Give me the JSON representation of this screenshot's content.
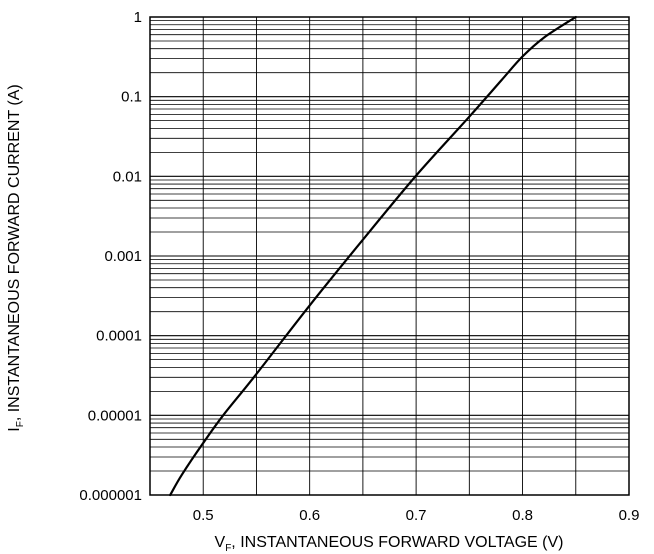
{
  "chart_data": {
    "type": "line",
    "title": "",
    "xlabel": {
      "main": "V",
      "sub": "F",
      "rest": ", INSTANTANEOUS FORWARD VOLTAGE (V)"
    },
    "ylabel": {
      "main": "I",
      "sub": "F",
      "rest": ", INSTANTANEOUS FORWARD CURRENT (A)"
    },
    "xscale": "linear",
    "yscale": "log",
    "xlim": [
      0.45,
      0.9
    ],
    "ylim": [
      1e-06,
      1
    ],
    "x_ticks": [
      0.5,
      0.6,
      0.7,
      0.8,
      0.9
    ],
    "x_tick_labels": [
      "0.5",
      "0.6",
      "0.7",
      "0.8",
      "0.9"
    ],
    "y_ticks": [
      1e-06,
      1e-05,
      0.0001,
      0.001,
      0.01,
      0.1,
      1
    ],
    "y_tick_labels": [
      "0.000001",
      "0.00001",
      "0.0001",
      "0.001",
      "0.01",
      "0.1",
      "1"
    ],
    "grid": true,
    "line_color": "#000000",
    "series": [
      {
        "x": [
          0.469,
          0.48,
          0.5,
          0.52,
          0.55,
          0.6,
          0.65,
          0.7,
          0.75,
          0.78,
          0.8,
          0.82,
          0.85
        ],
        "y": [
          1e-06,
          1.8e-06,
          4.5e-06,
          1.05e-05,
          3.3e-05,
          0.00024,
          0.0016,
          0.0102,
          0.056,
          0.16,
          0.32,
          0.55,
          1.0
        ]
      }
    ]
  }
}
